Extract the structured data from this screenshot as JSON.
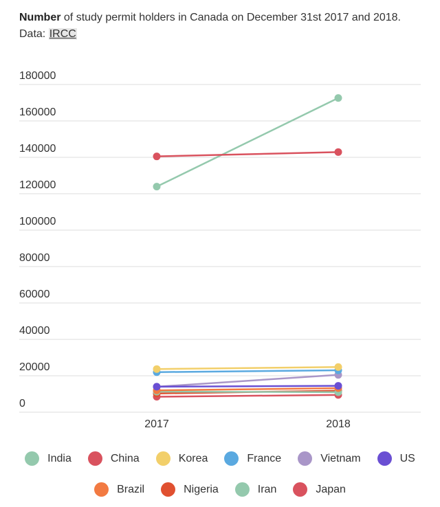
{
  "header": {
    "title_bold": "Number",
    "title_rest": " of study permit holders in Canada on December 31st 2017 and 2018.",
    "data_prefix": "Data: ",
    "data_source": "IRCC"
  },
  "chart_data": {
    "type": "line",
    "title": "Number of study permit holders in Canada on December 31st 2017 and 2018.",
    "categories": [
      "2017",
      "2018"
    ],
    "ylim": [
      0,
      180000
    ],
    "yticks": [
      0,
      20000,
      40000,
      60000,
      80000,
      100000,
      120000,
      140000,
      160000,
      180000
    ],
    "ytick_labels": [
      "0",
      "20000",
      "40000",
      "60000",
      "80000",
      "100000",
      "120000",
      "140000",
      "160000",
      "180000"
    ],
    "grid": true,
    "legend_position": "bottom",
    "series": [
      {
        "name": "India",
        "color": "#94c9ad",
        "values": [
          123900,
          172600
        ]
      },
      {
        "name": "China",
        "color": "#d9525e",
        "values": [
          140500,
          142900
        ]
      },
      {
        "name": "Korea",
        "color": "#f2cf6a",
        "values": [
          23700,
          24800
        ]
      },
      {
        "name": "France",
        "color": "#5aa9e0",
        "values": [
          22000,
          23000
        ]
      },
      {
        "name": "Vietnam",
        "color": "#a996c8",
        "values": [
          14000,
          20500
        ]
      },
      {
        "name": "US",
        "color": "#6a4fd3",
        "values": [
          14000,
          14500
        ]
      },
      {
        "name": "Brazil",
        "color": "#f27a42",
        "values": [
          12000,
          13200
        ]
      },
      {
        "name": "Nigeria",
        "color": "#e05030",
        "values": [
          10300,
          11800
        ]
      },
      {
        "name": "Iran",
        "color": "#94c9ad",
        "values": [
          11300,
          11000
        ]
      },
      {
        "name": "Japan",
        "color": "#d9525e",
        "values": [
          8500,
          9500
        ]
      }
    ]
  },
  "legend": {
    "row1": [
      "India",
      "China",
      "Korea",
      "France",
      "Vietnam",
      "US"
    ],
    "row2": [
      "Brazil",
      "Nigeria",
      "Iran",
      "Japan"
    ]
  }
}
